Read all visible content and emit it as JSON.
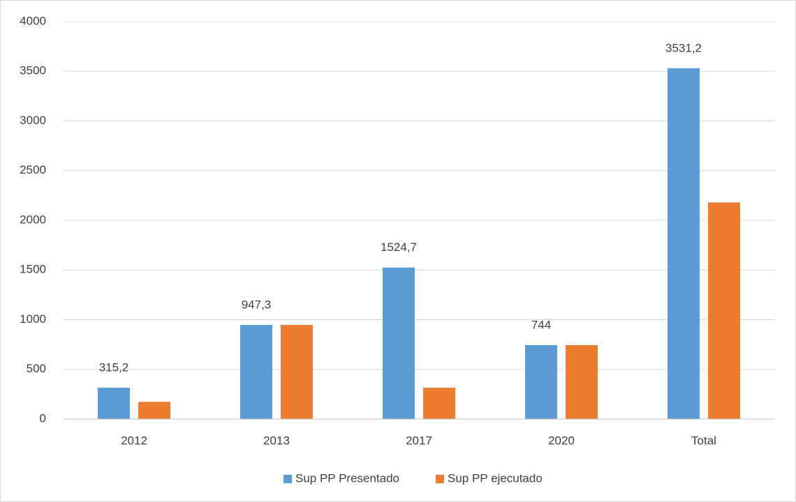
{
  "chart_data": {
    "type": "bar",
    "categories": [
      "2012",
      "2013",
      "2017",
      "2020",
      "Total"
    ],
    "series": [
      {
        "name": "Sup PP Presentado",
        "color": "#5b9bd5",
        "values": [
          315.2,
          947.3,
          1524.7,
          744,
          3531.2
        ],
        "value_labels": [
          "315,2",
          "947,3",
          "1524,7",
          "744",
          "3531,2"
        ]
      },
      {
        "name": "Sup PP ejecutado",
        "color": "#ed7d31",
        "values": [
          173,
          947.3,
          315,
          744,
          2180
        ]
      }
    ],
    "ylim": [
      0,
      4000
    ],
    "yticks": [
      0,
      500,
      1000,
      1500,
      2000,
      2500,
      3000,
      3500,
      4000
    ],
    "grid": true,
    "legend": "bottom"
  }
}
